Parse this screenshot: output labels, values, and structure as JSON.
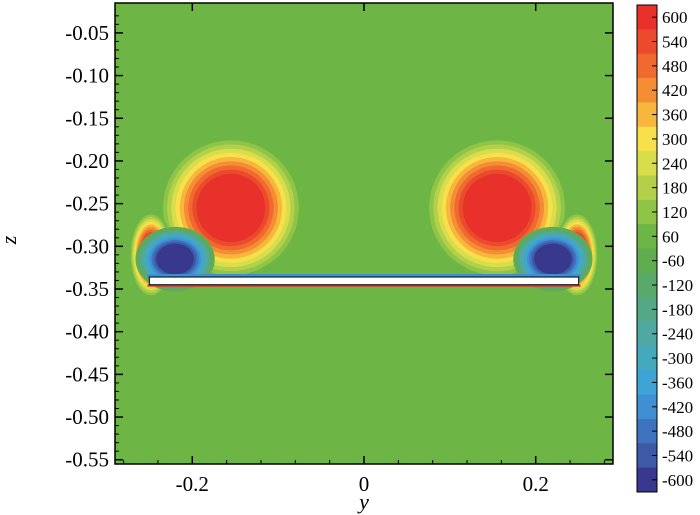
{
  "chart_data": {
    "type": "heatmap",
    "title": "",
    "xlabel": "y",
    "ylabel": "z",
    "xlim": [
      -0.29,
      0.29
    ],
    "ylim": [
      -0.555,
      -0.015
    ],
    "x_ticks": [
      {
        "value": -0.2,
        "label": "-0.2"
      },
      {
        "value": 0,
        "label": "0"
      },
      {
        "value": 0.2,
        "label": "0.2"
      }
    ],
    "y_ticks": [
      {
        "value": -0.05,
        "label": "-0.05"
      },
      {
        "value": -0.1,
        "label": "-0.10"
      },
      {
        "value": -0.15,
        "label": "-0.15"
      },
      {
        "value": -0.2,
        "label": "-0.20"
      },
      {
        "value": -0.25,
        "label": "-0.25"
      },
      {
        "value": -0.3,
        "label": "-0.30"
      },
      {
        "value": -0.35,
        "label": "-0.35"
      },
      {
        "value": -0.4,
        "label": "-0.40"
      },
      {
        "value": -0.45,
        "label": "-0.45"
      },
      {
        "value": -0.5,
        "label": "-0.50"
      },
      {
        "value": -0.55,
        "label": "-0.55"
      }
    ],
    "background_value": 0,
    "colorbar": {
      "levels": [
        {
          "value": 600,
          "label": "600",
          "color": "#e8312a"
        },
        {
          "value": 540,
          "label": "540",
          "color": "#ec4a2c"
        },
        {
          "value": 480,
          "label": "480",
          "color": "#f06a30"
        },
        {
          "value": 420,
          "label": "420",
          "color": "#f48d34"
        },
        {
          "value": 360,
          "label": "360",
          "color": "#f7b73c"
        },
        {
          "value": 300,
          "label": "300",
          "color": "#f7e04a"
        },
        {
          "value": 240,
          "label": "240",
          "color": "#d8dd4c"
        },
        {
          "value": 180,
          "label": "180",
          "color": "#b4d04a"
        },
        {
          "value": 120,
          "label": "120",
          "color": "#8fc546"
        },
        {
          "value": 60,
          "label": "60",
          "color": "#6db544"
        },
        {
          "value": -60,
          "label": "-60",
          "color": "#5fad4e"
        },
        {
          "value": -120,
          "label": "-120",
          "color": "#59a96a"
        },
        {
          "value": -180,
          "label": "-180",
          "color": "#55a886"
        },
        {
          "value": -240,
          "label": "-240",
          "color": "#4fa9a2"
        },
        {
          "value": -300,
          "label": "-300",
          "color": "#45a9bd"
        },
        {
          "value": -360,
          "label": "-360",
          "color": "#3ea3d5"
        },
        {
          "value": -420,
          "label": "-420",
          "color": "#3f8fd2"
        },
        {
          "value": -480,
          "label": "-480",
          "color": "#3f73bd"
        },
        {
          "value": -540,
          "label": "-540",
          "color": "#3d5aa6"
        },
        {
          "value": -600,
          "label": "-600",
          "color": "#38398c"
        }
      ]
    },
    "structures": [
      {
        "name": "vortex",
        "sign": "positive",
        "y": -0.155,
        "z": -0.255,
        "radius": 0.04,
        "peak": 600
      },
      {
        "name": "vortex",
        "sign": "positive",
        "y": 0.155,
        "z": -0.255,
        "radius": 0.04,
        "peak": 600
      },
      {
        "name": "tip-vortex",
        "sign": "positive",
        "y": -0.248,
        "z": -0.31,
        "radius_y": 0.012,
        "radius_z": 0.024,
        "peak": 600
      },
      {
        "name": "tip-vortex",
        "sign": "positive",
        "y": 0.248,
        "z": -0.31,
        "radius_y": 0.012,
        "radius_z": 0.024,
        "peak": 600
      },
      {
        "name": "secondary-vortex",
        "sign": "negative",
        "y": -0.22,
        "z": -0.315,
        "radius_y": 0.022,
        "radius_z": 0.018,
        "peak": -600
      },
      {
        "name": "secondary-vortex",
        "sign": "negative",
        "y": 0.22,
        "z": -0.315,
        "radius_y": 0.022,
        "radius_z": 0.018,
        "peak": -600
      },
      {
        "name": "plate",
        "y_from": -0.25,
        "y_to": 0.25,
        "z_top": -0.336,
        "z_bottom": -0.345
      }
    ]
  }
}
